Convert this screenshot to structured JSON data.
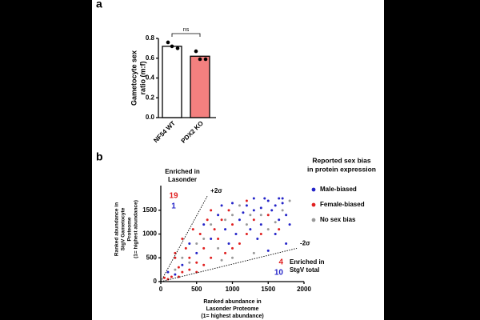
{
  "chart_data": [
    {
      "type": "bar",
      "panel_label": "a",
      "ylabel": [
        "Gametocyte sex",
        "ratio (m:f)"
      ],
      "categories": [
        "NF54 WT",
        "PDX2 KO"
      ],
      "values": [
        0.72,
        0.62
      ],
      "colors": [
        "#ffffff",
        "#f4807f"
      ],
      "points": [
        [
          0.76,
          0.7,
          0.72
        ],
        [
          0.67,
          0.59,
          0.59
        ]
      ],
      "annotation": "ns",
      "ylim": [
        0,
        0.8
      ],
      "yticks": [
        {
          "value": 0,
          "label": "0.0"
        },
        0.2,
        0.4,
        0.6,
        0.8
      ]
    },
    {
      "type": "scatter",
      "panel_label": "b",
      "xlabel": [
        "Ranked abundance in",
        "Lasonder Proteome",
        "(1= highest abundance)"
      ],
      "ylabel": [
        "Ranked abundance in",
        "StgV Gametocyte",
        "Proteome",
        "(1= highest abundance)"
      ],
      "xlim": [
        0,
        2000
      ],
      "xticks": [
        0,
        500,
        1000,
        1500,
        2000
      ],
      "ylim": [
        0,
        1800
      ],
      "yticks": [
        0,
        500,
        1000,
        1500
      ],
      "legend_title": [
        "Reported sex bias",
        "in protein expression"
      ],
      "series": [
        {
          "name": "Male-biased",
          "color": "#2424c8",
          "x": [
            1500,
            1650,
            1200,
            1750,
            1400,
            1600,
            1300,
            1100,
            900,
            1000,
            800,
            1700,
            1550,
            1450,
            1250,
            950,
            700,
            600,
            1800,
            1350,
            1150,
            850,
            1650,
            1050,
            500,
            400,
            300,
            200,
            100,
            1750,
            1500,
            1300,
            1600,
            1700,
            1400
          ],
          "y": [
            1700,
            1750,
            1600,
            1400,
            1200,
            1000,
            1500,
            1300,
            1100,
            1650,
            1400,
            1650,
            1500,
            1750,
            1100,
            800,
            900,
            1200,
            1200,
            900,
            1450,
            1600,
            1300,
            1000,
            600,
            800,
            350,
            150,
            200,
            800,
            650,
            1750,
            1600,
            1750,
            1550
          ]
        },
        {
          "name": "Female-biased",
          "color": "#e02020",
          "x": [
            150,
            250,
            300,
            400,
            350,
            500,
            600,
            700,
            800,
            900,
            550,
            450,
            650,
            750,
            1000,
            1100,
            1200,
            1300,
            200,
            100,
            50,
            400,
            600,
            850,
            1000,
            1500,
            1400,
            300,
            200,
            700,
            1200,
            1650,
            950,
            500,
            250
          ],
          "y": [
            100,
            300,
            200,
            500,
            700,
            400,
            700,
            500,
            900,
            600,
            1000,
            1100,
            1300,
            1100,
            1200,
            800,
            1000,
            1300,
            500,
            50,
            80,
            250,
            350,
            1300,
            700,
            1400,
            1000,
            900,
            600,
            1500,
            1700,
            1100,
            1500,
            200,
            100
          ]
        },
        {
          "name": "No sex bias",
          "color": "#999999",
          "x": [
            1000,
            1200,
            800,
            600,
            1400,
            1700,
            500,
            300,
            1100,
            900,
            1300,
            1500,
            700,
            400,
            1600,
            200,
            1000,
            1800,
            1250,
            850
          ],
          "y": [
            1400,
            1200,
            700,
            900,
            1400,
            1500,
            800,
            500,
            1600,
            1300,
            600,
            1100,
            1200,
            400,
            1250,
            250,
            500,
            1700,
            1400,
            450
          ]
        }
      ],
      "lines": [
        {
          "label": "+2σ",
          "x": [
            0,
            650
          ],
          "y": [
            0,
            1800
          ]
        },
        {
          "label": "-2σ",
          "x": [
            0,
            1900
          ],
          "y": [
            0,
            700
          ]
        }
      ],
      "upper_note": [
        "Enriched in",
        "Lasonder"
      ],
      "upper_counts": [
        {
          "value": 19,
          "color": "#e02020"
        },
        {
          "value": 1,
          "color": "#2424c8"
        }
      ],
      "lower_note": [
        "Enriched in",
        "StgV total"
      ],
      "lower_counts": [
        {
          "value": 4,
          "color": "#e02020"
        },
        {
          "value": 10,
          "color": "#2424c8"
        }
      ]
    }
  ]
}
